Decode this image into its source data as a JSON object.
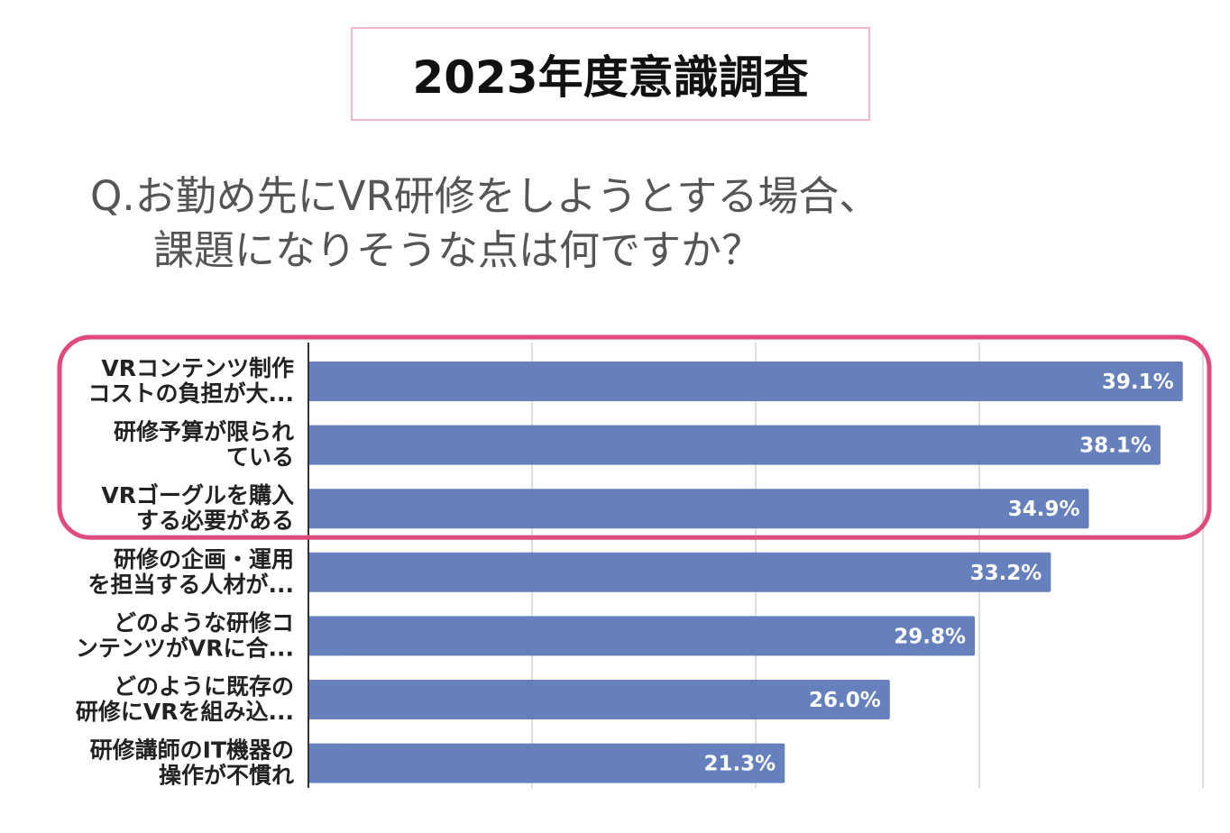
{
  "header": {
    "title": "2023年度意識調査"
  },
  "question": {
    "line1": "Q.お勤め先にVR研修をしようとする場合、",
    "line2": "課題になりそうな点は何ですか？"
  },
  "chart_data": {
    "type": "bar",
    "orientation": "horizontal",
    "title": "",
    "xlabel": "",
    "ylabel": "",
    "xlim": [
      0,
      40
    ],
    "grid": true,
    "categories": [
      [
        "VRコンテンツ制作",
        "コストの負担が大..."
      ],
      [
        "研修予算が限られ",
        "ている"
      ],
      [
        "VRゴーグルを購入",
        "する必要がある"
      ],
      [
        "研修の企画・運用",
        "を担当する人材が..."
      ],
      [
        "どのような研修コ",
        "ンテンツがVRに合..."
      ],
      [
        "どのように既存の",
        "研修にVRを組み込..."
      ],
      [
        "研修講師のIT機器の",
        "操作が不慣れ"
      ]
    ],
    "values": [
      39.1,
      38.1,
      34.9,
      33.2,
      29.8,
      26.0,
      21.3
    ],
    "value_labels": [
      "39.1%",
      "38.1%",
      "34.9%",
      "33.2%",
      "29.8%",
      "26.0%",
      "21.3%"
    ],
    "bar_color": "#6680be",
    "highlight": {
      "indices": [
        0,
        1,
        2
      ],
      "color": "#e04a7d"
    }
  }
}
